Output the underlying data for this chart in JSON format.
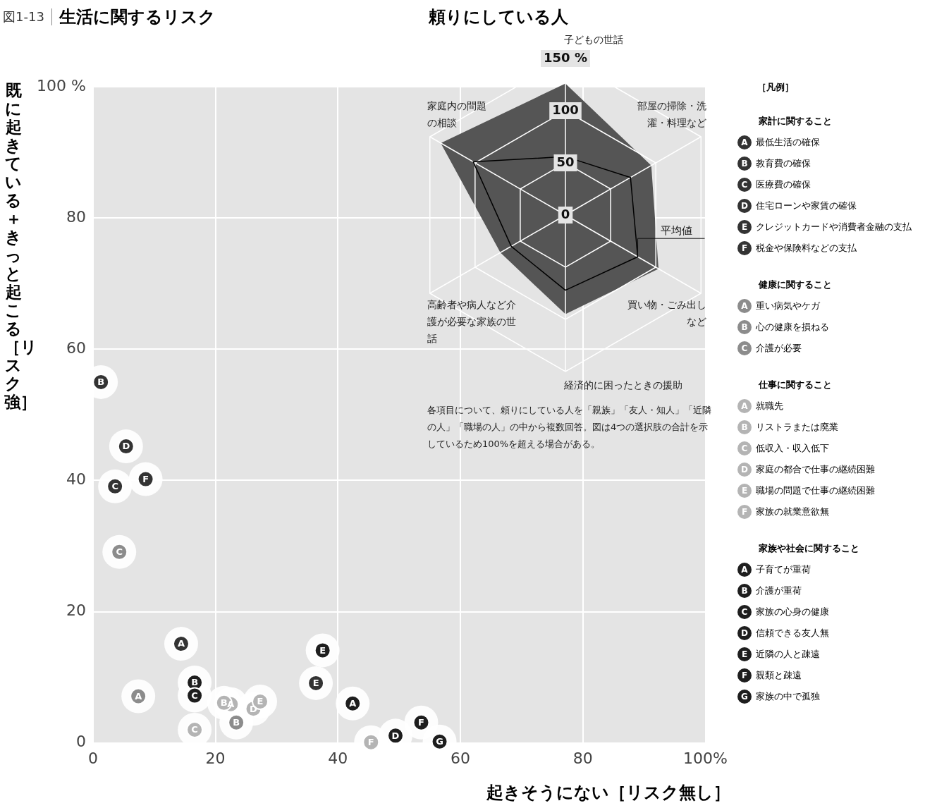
{
  "chart_data": [
    {
      "type": "scatter",
      "subtitle": "図1-13",
      "title": "生活に関するリスク",
      "xlabel": "起きそうにない［リスク無し］",
      "ylabel": "既に起きている＋きっと起こる［リスク強］",
      "legend_title": "［凡例］",
      "legend": "right",
      "grid": true,
      "marker": "circle",
      "xlim": [
        0,
        100
      ],
      "xticks": [
        0,
        20,
        40,
        60,
        80,
        {
          "value": 100,
          "label": "100%"
        }
      ],
      "ylim": [
        0,
        100
      ],
      "yticks": [
        0,
        20,
        40,
        60,
        80,
        {
          "value": 100,
          "label": "100 %"
        }
      ],
      "annotations": [
        "家計に関すること",
        "健康に関すること",
        "仕事に関すること",
        "家族や社会に関すること",
        {
          "text": "A",
          "x": 14.4,
          "y": 15.1
        },
        {
          "text": "B",
          "x": 1.3,
          "y": 55
        },
        {
          "text": "C",
          "x": 3.6,
          "y": 39.1
        },
        {
          "text": "D",
          "x": 5.4,
          "y": 45.2
        },
        {
          "text": "E",
          "x": 36.4,
          "y": 9.1
        },
        {
          "text": "F",
          "x": 8.6,
          "y": 40.2
        },
        {
          "text": "A",
          "x": 7.4,
          "y": 7.1
        },
        {
          "text": "B",
          "x": 23.4,
          "y": 3.1
        },
        {
          "text": "C",
          "x": 4.3,
          "y": 29.1
        },
        {
          "text": "A",
          "x": 22.5,
          "y": 5.9
        },
        {
          "text": "B",
          "x": 21.4,
          "y": 6.1
        },
        {
          "text": "C",
          "x": 16.6,
          "y": 2
        },
        {
          "text": "D",
          "x": 26.2,
          "y": 5.2
        },
        {
          "text": "E",
          "x": 27.3,
          "y": 6.3
        },
        {
          "text": "F",
          "x": 45.4,
          "y": 0.1
        },
        {
          "text": "A",
          "x": 42.4,
          "y": 6
        },
        {
          "text": "B",
          "x": 16.6,
          "y": 9.2
        },
        {
          "text": "C",
          "x": 16.6,
          "y": 7.2
        },
        {
          "text": "D",
          "x": 49.4,
          "y": 1.1
        },
        {
          "text": "E",
          "x": 37.5,
          "y": 14.1
        },
        {
          "text": "F",
          "x": 53.6,
          "y": 3.1
        },
        {
          "text": "G",
          "x": 56.6,
          "y": 0.2
        }
      ],
      "series": [
        {
          "name": "最低生活の確保",
          "color": "#333333",
          "x": [
            14.4
          ],
          "values": [
            15.1
          ]
        },
        {
          "name": "教育費の確保",
          "color": "#333333",
          "x": [
            1.3
          ],
          "values": [
            55
          ]
        },
        {
          "name": "医療費の確保",
          "color": "#333333",
          "x": [
            3.6
          ],
          "values": [
            39.1
          ]
        },
        {
          "name": "住宅ローンや家賃の確保",
          "color": "#333333",
          "x": [
            5.4
          ],
          "values": [
            45.2
          ]
        },
        {
          "name": "クレジットカードや消費者金融の支払",
          "color": "#333333",
          "x": [
            36.4
          ],
          "values": [
            9.1
          ]
        },
        {
          "name": "税金や保険料などの支払",
          "color": "#333333",
          "x": [
            8.6
          ],
          "values": [
            40.2
          ]
        },
        {
          "name": "重い病気やケガ",
          "color": "#8c8c8c",
          "x": [
            7.4
          ],
          "values": [
            7.1
          ]
        },
        {
          "name": "心の健康を損ねる",
          "color": "#8c8c8c",
          "x": [
            23.4
          ],
          "values": [
            3.1
          ]
        },
        {
          "name": "介護が必要",
          "color": "#8c8c8c",
          "x": [
            4.3
          ],
          "values": [
            29.1
          ]
        },
        {
          "name": "就職先",
          "color": "#b4b4b4",
          "x": [
            22.5
          ],
          "values": [
            5.9
          ]
        },
        {
          "name": "リストラまたは廃業",
          "color": "#b4b4b4",
          "x": [
            21.4
          ],
          "values": [
            6.1
          ]
        },
        {
          "name": "低収入・収入低下",
          "color": "#b4b4b4",
          "x": [
            16.6
          ],
          "values": [
            2
          ]
        },
        {
          "name": "家庭の都合で仕事の継続困難",
          "color": "#b4b4b4",
          "x": [
            26.2
          ],
          "values": [
            5.2
          ]
        },
        {
          "name": "職場の問題で仕事の継続困難",
          "color": "#b4b4b4",
          "x": [
            27.3
          ],
          "values": [
            6.3
          ]
        },
        {
          "name": "家族の就業意欲無",
          "color": "#b4b4b4",
          "x": [
            45.4
          ],
          "values": [
            0.1
          ]
        },
        {
          "name": "子育てが重荷",
          "color": "#1e1e1e",
          "x": [
            42.4
          ],
          "values": [
            6
          ]
        },
        {
          "name": "介護が重荷",
          "color": "#1e1e1e",
          "x": [
            16.6
          ],
          "values": [
            9.2
          ]
        },
        {
          "name": "家族の心身の健康",
          "color": "#1e1e1e",
          "x": [
            16.6
          ],
          "values": [
            7.2
          ]
        },
        {
          "name": "信頼できる友人無",
          "color": "#1e1e1e",
          "x": [
            49.4
          ],
          "values": [
            1.1
          ]
        },
        {
          "name": "近隣の人と疎遠",
          "color": "#1e1e1e",
          "x": [
            37.5
          ],
          "values": [
            14.1
          ]
        },
        {
          "name": "親類と疎遠",
          "color": "#1e1e1e",
          "x": [
            53.6
          ],
          "values": [
            3.1
          ]
        },
        {
          "name": "家族の中で孤独",
          "color": "#1e1e1e",
          "x": [
            56.6
          ],
          "values": [
            0.2
          ]
        }
      ]
    },
    {
      "type": "radar",
      "title": "頼りにしている人",
      "categories": [
        "子どもの世話",
        "部屋の掃除・洗濯・料理など",
        "買い物・ごみ出しなど",
        "経済的に困ったときの援助",
        "高齢者や病人など介護が必要な家族の世話",
        "家庭内の問題の相談"
      ],
      "ylim": [
        0,
        150
      ],
      "yticks": [
        0,
        50,
        100,
        {
          "value": 150,
          "label": "150 %"
        }
      ],
      "grid": true,
      "annotations": [
        "各項目について、頼りにしている人を「親族」「友人・知人」「近隣の人」「職場の人」の中から複数回答。図は4つの選択肢の合計を示しているため100%を超える場合がある。"
      ],
      "series": [
        {
          "color": "#555555",
          "values": [
            126,
            95,
            103,
            95,
            72,
            138
          ]
        },
        {
          "name": "平均値",
          "color": "#000000",
          "values": [
            56,
            72,
            80,
            72,
            60,
            102
          ]
        }
      ]
    }
  ]
}
